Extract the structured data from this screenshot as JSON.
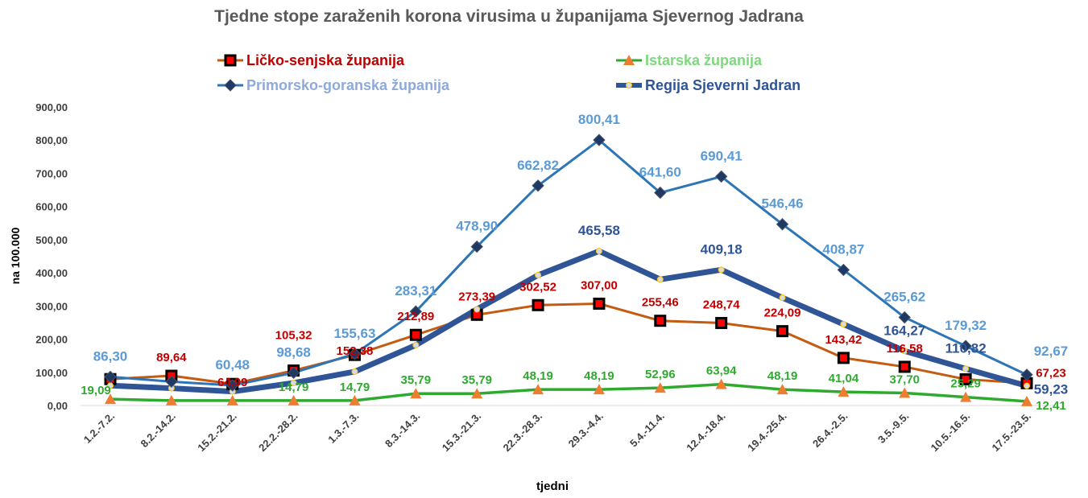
{
  "chart_data": {
    "type": "line",
    "title": "Tjedne stope zaraženih korona virusima u županijama Sjevernog Jadrana",
    "xlabel": "tjedni",
    "ylabel": "na 100.000",
    "ylim": [
      0,
      900
    ],
    "yticks": [
      "0,00",
      "100,00",
      "200,00",
      "300,00",
      "400,00",
      "500,00",
      "600,00",
      "700,00",
      "800,00",
      "900,00"
    ],
    "categories": [
      "1.2.-7.2.",
      "8.2.-14.2.",
      "15.2.-21.2.",
      "22.2.-28.2.",
      "1.3.-7.3.",
      "8.3.-14.3.",
      "15.3.-21.3.",
      "22.3.-28.3.",
      "29.3.-4.4.",
      "5.4.-11.4.",
      "12.4.-18.4.",
      "19.4.-25.4.",
      "26.4.-2.5.",
      "3.5.-9.5.",
      "10.5.-16.5.",
      "17.5.-23.5."
    ],
    "legend_placement": "top",
    "series": [
      {
        "name": "Ličko-senjska županija",
        "color": "#C55A11",
        "marker": "square",
        "label_color": "#C00000",
        "values": [
          79.5,
          89.64,
          64.99,
          105.32,
          152.38,
          212.89,
          273.39,
          302.52,
          307.0,
          255.46,
          248.74,
          224.09,
          143.42,
          116.58,
          79.0,
          67.23
        ],
        "labels": [
          null,
          "89,64",
          "64,99",
          "105,32",
          "152,38",
          "212,89",
          "273,39",
          "302,52",
          "307,00",
          "255,46",
          "248,74",
          "224,09",
          "143,42",
          "116,58",
          null,
          "67,23"
        ]
      },
      {
        "name": "Istarska županija",
        "color": "#2EAA2E",
        "marker": "triangle",
        "label_color": "#2EAA2E",
        "values": [
          19.09,
          14.79,
          14.79,
          14.79,
          14.79,
          35.79,
          35.79,
          48.19,
          48.19,
          52.96,
          63.94,
          48.19,
          41.04,
          37.7,
          25.29,
          12.41
        ],
        "labels": [
          "19,09",
          null,
          null,
          "14,79",
          "14,79",
          "35,79",
          "35,79",
          "48,19",
          "48,19",
          "52,96",
          "63,94",
          "48,19",
          "41,04",
          "37,70",
          "25,29",
          "12,41"
        ]
      },
      {
        "name": "Primorsko-goranska županija",
        "color": "#2E75B6",
        "marker": "diamond",
        "label_color": "#5B9BD5",
        "values": [
          86.3,
          72,
          60.48,
          98.68,
          155.63,
          283.31,
          478.9,
          662.82,
          800.41,
          641.6,
          690.41,
          546.46,
          408.87,
          265.62,
          179.32,
          92.67
        ],
        "labels": [
          "86,30",
          null,
          "60,48",
          "98,68",
          "155,63",
          "283,31",
          "478,90",
          "662,82",
          "800,41",
          "641,60",
          "690,41",
          "546,46",
          "408,87",
          "265,62",
          "179,32",
          "92,67"
        ]
      },
      {
        "name": "Regija Sjeverni Jadran",
        "color": "#2F5597",
        "marker": "circle",
        "label_color": "#2F5597",
        "values": [
          60,
          52,
          42,
          68,
          102,
          182,
          290,
          393,
          465.58,
          380,
          409.18,
          325,
          245,
          164.27,
          110.82,
          59.23
        ],
        "labels": [
          null,
          null,
          null,
          null,
          null,
          null,
          null,
          null,
          "465,58",
          null,
          "409,18",
          null,
          null,
          "164,27",
          "110,82",
          "59,23"
        ]
      }
    ]
  }
}
